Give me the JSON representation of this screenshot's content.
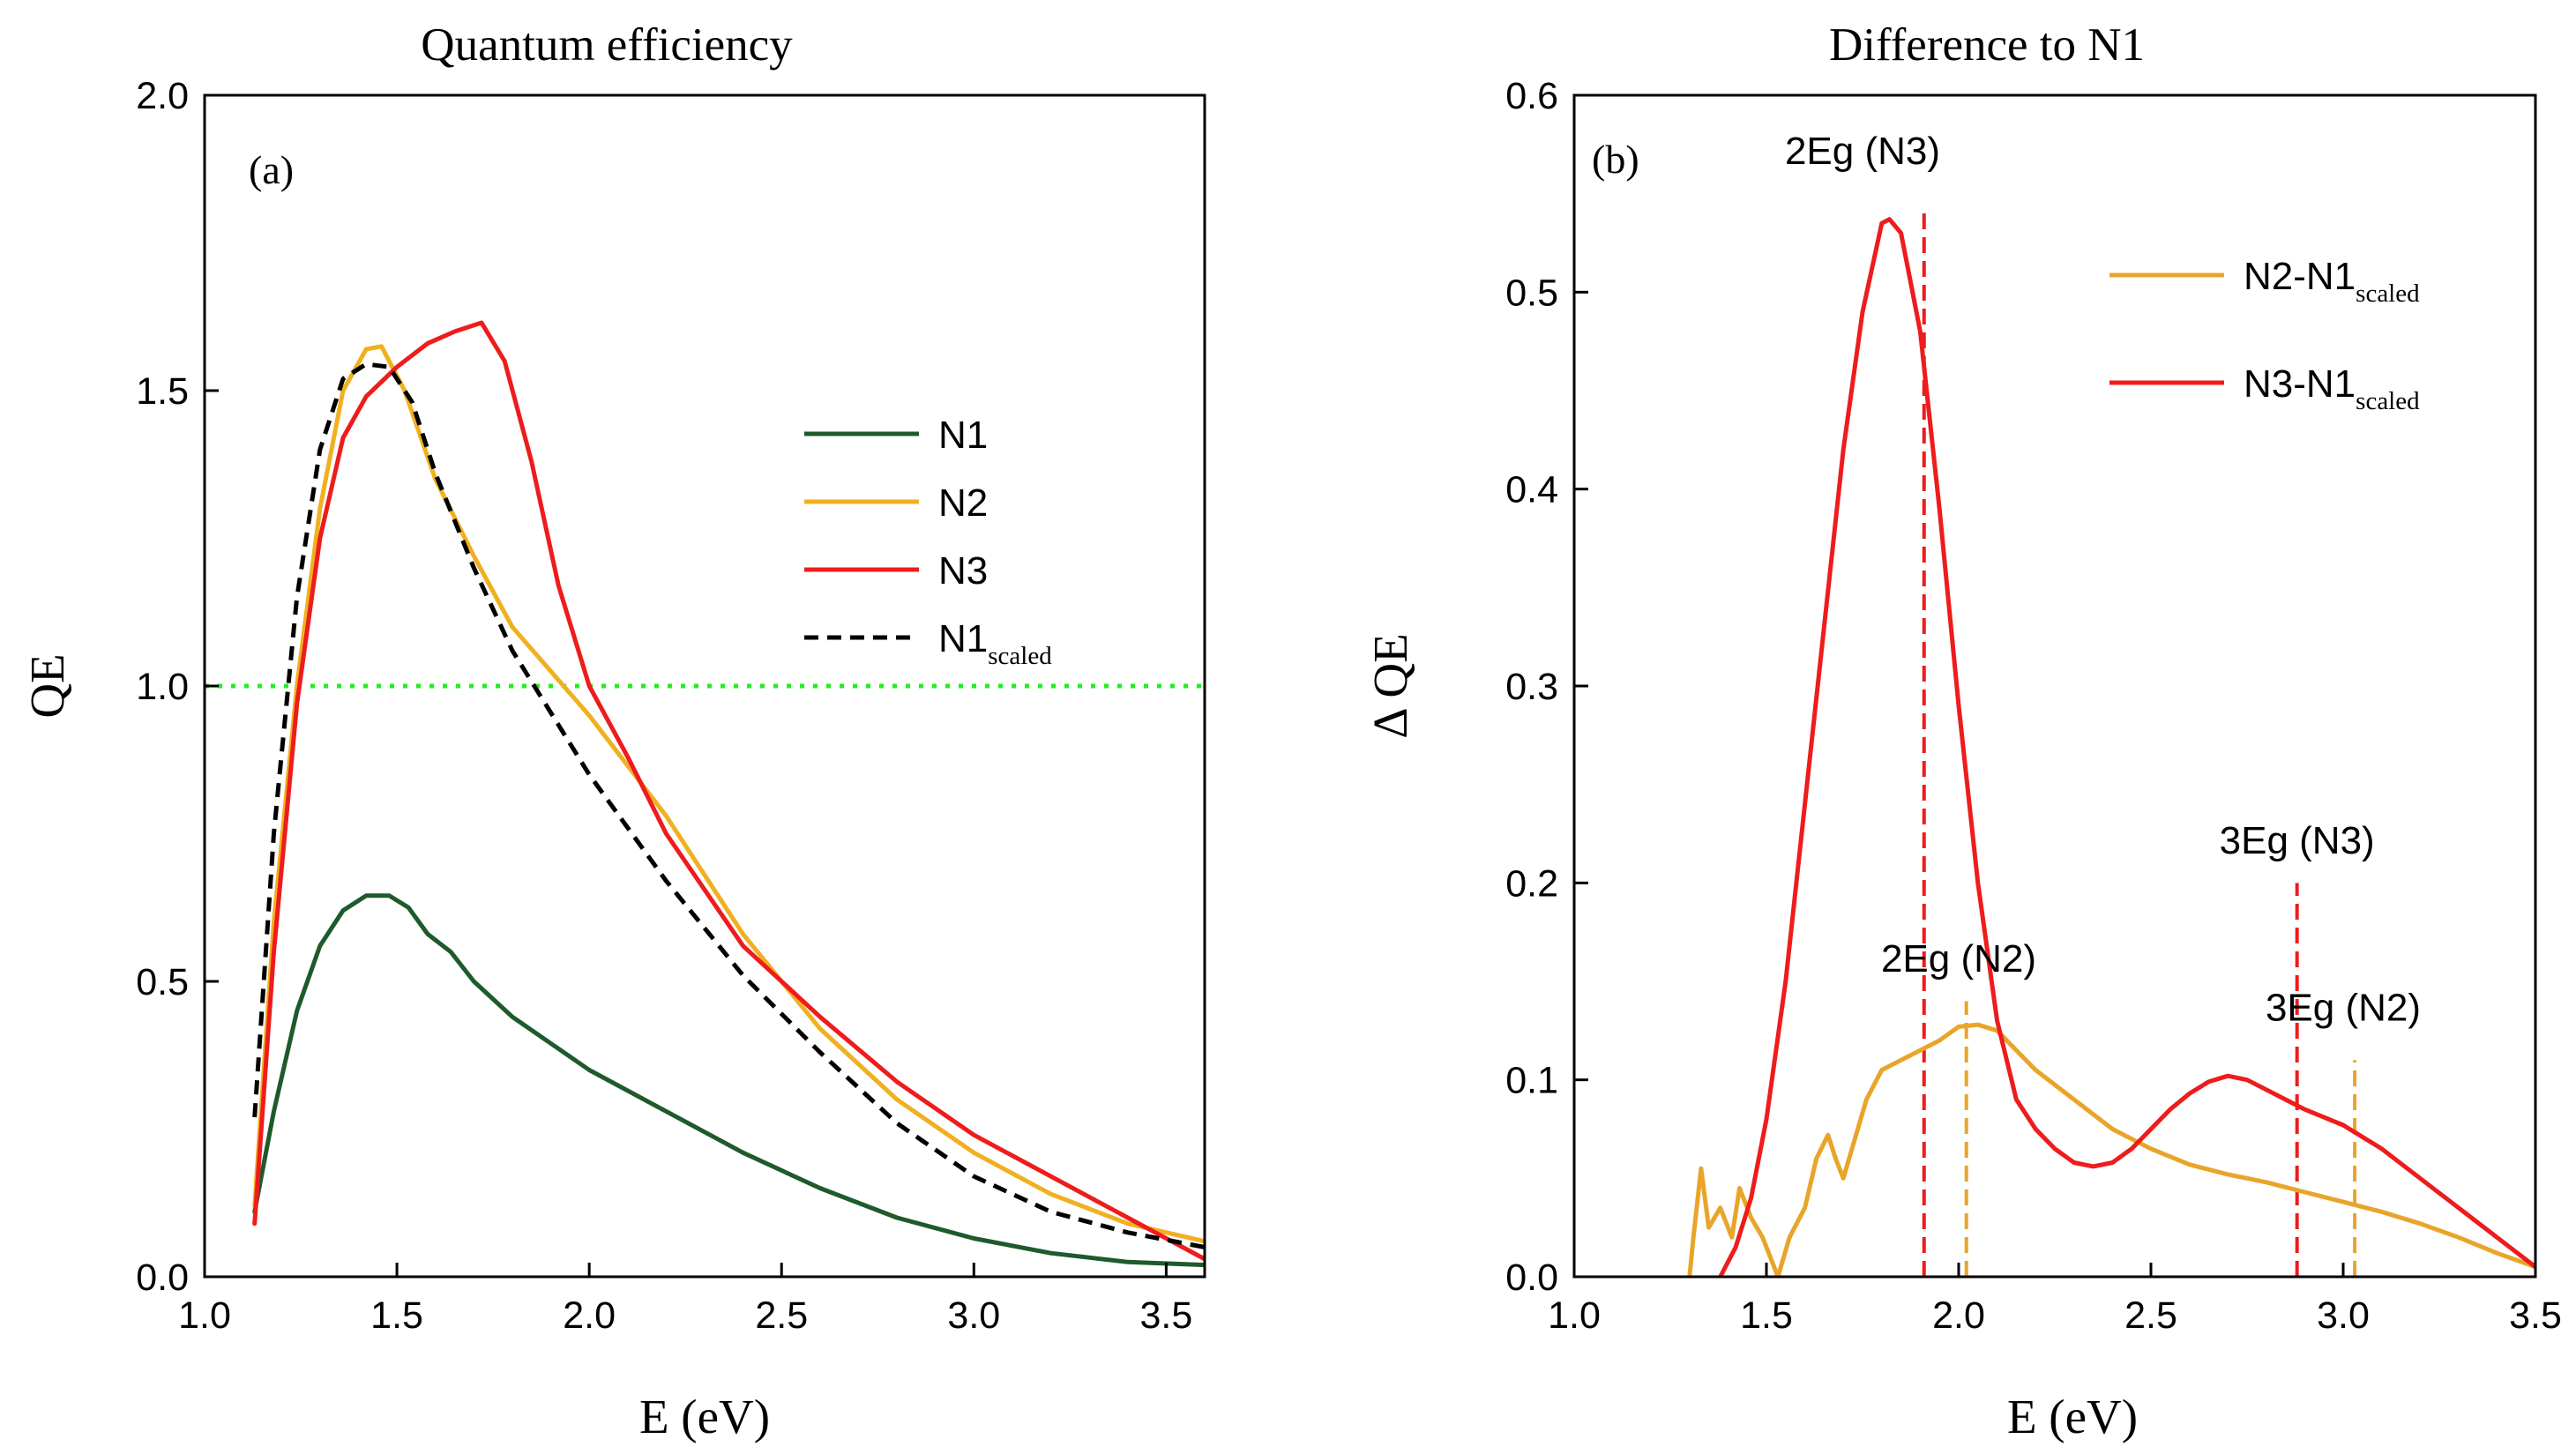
{
  "chart_data": [
    {
      "type": "line",
      "title": "Quantum efficiency",
      "panel_label": "(a)",
      "xlabel": "E (eV)",
      "ylabel": "QE",
      "xlim": [
        1.0,
        3.6
      ],
      "ylim": [
        0.0,
        2.0
      ],
      "xticks": [
        "1.0",
        "1.5",
        "2.0",
        "2.5",
        "3.0",
        "3.5"
      ],
      "yticks": [
        "0.0",
        "0.5",
        "1.0",
        "1.5",
        "2.0"
      ],
      "grid": false,
      "legend_position": "right",
      "reference_line": {
        "y": 1.0,
        "color": "#22ee22",
        "style": "dotted"
      },
      "series": [
        {
          "name": "N1",
          "color": "#1e5a2c",
          "style": "solid",
          "points": [
            [
              1.13,
              0.11
            ],
            [
              1.18,
              0.28
            ],
            [
              1.24,
              0.45
            ],
            [
              1.3,
              0.56
            ],
            [
              1.36,
              0.62
            ],
            [
              1.42,
              0.645
            ],
            [
              1.48,
              0.645
            ],
            [
              1.53,
              0.625
            ],
            [
              1.58,
              0.58
            ],
            [
              1.64,
              0.55
            ],
            [
              1.7,
              0.5
            ],
            [
              1.8,
              0.44
            ],
            [
              2.0,
              0.35
            ],
            [
              2.2,
              0.28
            ],
            [
              2.4,
              0.21
            ],
            [
              2.6,
              0.15
            ],
            [
              2.8,
              0.1
            ],
            [
              3.0,
              0.065
            ],
            [
              3.2,
              0.04
            ],
            [
              3.4,
              0.025
            ],
            [
              3.6,
              0.02
            ]
          ]
        },
        {
          "name": "N2",
          "color": "#f0b020",
          "style": "solid",
          "points": [
            [
              1.13,
              0.12
            ],
            [
              1.18,
              0.6
            ],
            [
              1.24,
              1.0
            ],
            [
              1.3,
              1.3
            ],
            [
              1.36,
              1.5
            ],
            [
              1.42,
              1.57
            ],
            [
              1.46,
              1.575
            ],
            [
              1.52,
              1.5
            ],
            [
              1.6,
              1.35
            ],
            [
              1.7,
              1.22
            ],
            [
              1.8,
              1.1
            ],
            [
              2.0,
              0.95
            ],
            [
              2.2,
              0.78
            ],
            [
              2.4,
              0.58
            ],
            [
              2.6,
              0.42
            ],
            [
              2.8,
              0.3
            ],
            [
              3.0,
              0.21
            ],
            [
              3.2,
              0.14
            ],
            [
              3.4,
              0.09
            ],
            [
              3.6,
              0.06
            ]
          ]
        },
        {
          "name": "N3",
          "color": "#ee1c1c",
          "style": "solid",
          "points": [
            [
              1.13,
              0.09
            ],
            [
              1.18,
              0.55
            ],
            [
              1.24,
              0.97
            ],
            [
              1.3,
              1.25
            ],
            [
              1.36,
              1.42
            ],
            [
              1.42,
              1.49
            ],
            [
              1.5,
              1.54
            ],
            [
              1.58,
              1.58
            ],
            [
              1.65,
              1.6
            ],
            [
              1.72,
              1.615
            ],
            [
              1.78,
              1.55
            ],
            [
              1.85,
              1.38
            ],
            [
              1.92,
              1.17
            ],
            [
              2.0,
              1.0
            ],
            [
              2.1,
              0.88
            ],
            [
              2.2,
              0.75
            ],
            [
              2.4,
              0.56
            ],
            [
              2.6,
              0.44
            ],
            [
              2.8,
              0.33
            ],
            [
              3.0,
              0.24
            ],
            [
              3.2,
              0.17
            ],
            [
              3.4,
              0.1
            ],
            [
              3.6,
              0.03
            ]
          ]
        },
        {
          "name": "N1",
          "name_subscript": "scaled",
          "color": "#000000",
          "style": "dashed",
          "points": [
            [
              1.13,
              0.27
            ],
            [
              1.18,
              0.75
            ],
            [
              1.24,
              1.15
            ],
            [
              1.3,
              1.4
            ],
            [
              1.36,
              1.52
            ],
            [
              1.42,
              1.545
            ],
            [
              1.48,
              1.54
            ],
            [
              1.54,
              1.48
            ],
            [
              1.6,
              1.36
            ],
            [
              1.7,
              1.2
            ],
            [
              1.8,
              1.06
            ],
            [
              2.0,
              0.85
            ],
            [
              2.2,
              0.67
            ],
            [
              2.4,
              0.51
            ],
            [
              2.6,
              0.38
            ],
            [
              2.8,
              0.26
            ],
            [
              3.0,
              0.17
            ],
            [
              3.2,
              0.11
            ],
            [
              3.4,
              0.075
            ],
            [
              3.6,
              0.05
            ]
          ]
        }
      ]
    },
    {
      "type": "line",
      "title": "Difference to N1",
      "panel_label": "(b)",
      "xlabel": "E (eV)",
      "ylabel": "Δ QE",
      "xlim": [
        1.0,
        3.5
      ],
      "ylim": [
        0.0,
        0.6
      ],
      "xticks": [
        "1.0",
        "1.5",
        "2.0",
        "2.5",
        "3.0",
        "3.5"
      ],
      "yticks": [
        "0.0",
        "0.1",
        "0.2",
        "0.3",
        "0.4",
        "0.5",
        "0.6"
      ],
      "grid": false,
      "legend_position": "top-right",
      "series": [
        {
          "name": "N2-N1",
          "name_subscript": "scaled",
          "color": "#e8a52a",
          "style": "solid",
          "points": [
            [
              1.3,
              0.0
            ],
            [
              1.31,
              0.02
            ],
            [
              1.33,
              0.055
            ],
            [
              1.35,
              0.025
            ],
            [
              1.38,
              0.035
            ],
            [
              1.41,
              0.02
            ],
            [
              1.43,
              0.045
            ],
            [
              1.46,
              0.03
            ],
            [
              1.49,
              0.02
            ],
            [
              1.51,
              0.01
            ],
            [
              1.53,
              0.0
            ],
            [
              1.56,
              0.02
            ],
            [
              1.6,
              0.035
            ],
            [
              1.63,
              0.06
            ],
            [
              1.66,
              0.072
            ],
            [
              1.68,
              0.06
            ],
            [
              1.7,
              0.05
            ],
            [
              1.73,
              0.07
            ],
            [
              1.76,
              0.09
            ],
            [
              1.8,
              0.105
            ],
            [
              1.85,
              0.11
            ],
            [
              1.9,
              0.115
            ],
            [
              1.95,
              0.12
            ],
            [
              2.0,
              0.127
            ],
            [
              2.05,
              0.128
            ],
            [
              2.1,
              0.125
            ],
            [
              2.15,
              0.115
            ],
            [
              2.2,
              0.105
            ],
            [
              2.3,
              0.09
            ],
            [
              2.4,
              0.075
            ],
            [
              2.5,
              0.065
            ],
            [
              2.6,
              0.057
            ],
            [
              2.7,
              0.052
            ],
            [
              2.8,
              0.048
            ],
            [
              2.9,
              0.043
            ],
            [
              3.0,
              0.038
            ],
            [
              3.1,
              0.033
            ],
            [
              3.2,
              0.027
            ],
            [
              3.3,
              0.02
            ],
            [
              3.4,
              0.012
            ],
            [
              3.5,
              0.005
            ]
          ]
        },
        {
          "name": "N3-N1",
          "name_subscript": "scaled",
          "color": "#ee1c1c",
          "style": "solid",
          "points": [
            [
              1.38,
              0.0
            ],
            [
              1.42,
              0.015
            ],
            [
              1.46,
              0.04
            ],
            [
              1.5,
              0.08
            ],
            [
              1.55,
              0.15
            ],
            [
              1.6,
              0.24
            ],
            [
              1.65,
              0.33
            ],
            [
              1.7,
              0.42
            ],
            [
              1.75,
              0.49
            ],
            [
              1.8,
              0.535
            ],
            [
              1.82,
              0.537
            ],
            [
              1.85,
              0.53
            ],
            [
              1.9,
              0.48
            ],
            [
              1.95,
              0.39
            ],
            [
              2.0,
              0.29
            ],
            [
              2.05,
              0.2
            ],
            [
              2.1,
              0.13
            ],
            [
              2.15,
              0.09
            ],
            [
              2.2,
              0.075
            ],
            [
              2.25,
              0.065
            ],
            [
              2.3,
              0.058
            ],
            [
              2.35,
              0.056
            ],
            [
              2.4,
              0.058
            ],
            [
              2.45,
              0.065
            ],
            [
              2.5,
              0.075
            ],
            [
              2.55,
              0.085
            ],
            [
              2.6,
              0.093
            ],
            [
              2.65,
              0.099
            ],
            [
              2.7,
              0.102
            ],
            [
              2.75,
              0.1
            ],
            [
              2.8,
              0.095
            ],
            [
              2.85,
              0.09
            ],
            [
              2.9,
              0.085
            ],
            [
              3.0,
              0.077
            ],
            [
              3.1,
              0.065
            ],
            [
              3.2,
              0.05
            ],
            [
              3.3,
              0.035
            ],
            [
              3.4,
              0.02
            ],
            [
              3.48,
              0.008
            ],
            [
              3.5,
              0.005
            ]
          ]
        }
      ],
      "markers": [
        {
          "x": 1.91,
          "y_max": 0.54,
          "color": "#ee1c1c",
          "label": "2Eg (N3)",
          "label_x": 1.75,
          "label_y": 0.565
        },
        {
          "x": 2.02,
          "y_max": 0.14,
          "color": "#e8a52a",
          "label": "2Eg (N2)",
          "label_x": 2.0,
          "label_y": 0.155
        },
        {
          "x": 2.88,
          "y_max": 0.2,
          "color": "#ee1c1c",
          "label": "3Eg (N3)",
          "label_x": 2.88,
          "label_y": 0.215
        },
        {
          "x": 3.03,
          "y_max": 0.11,
          "color": "#e8a52a",
          "label": "3Eg (N2)",
          "label_x": 3.0,
          "label_y": 0.13
        }
      ]
    }
  ]
}
